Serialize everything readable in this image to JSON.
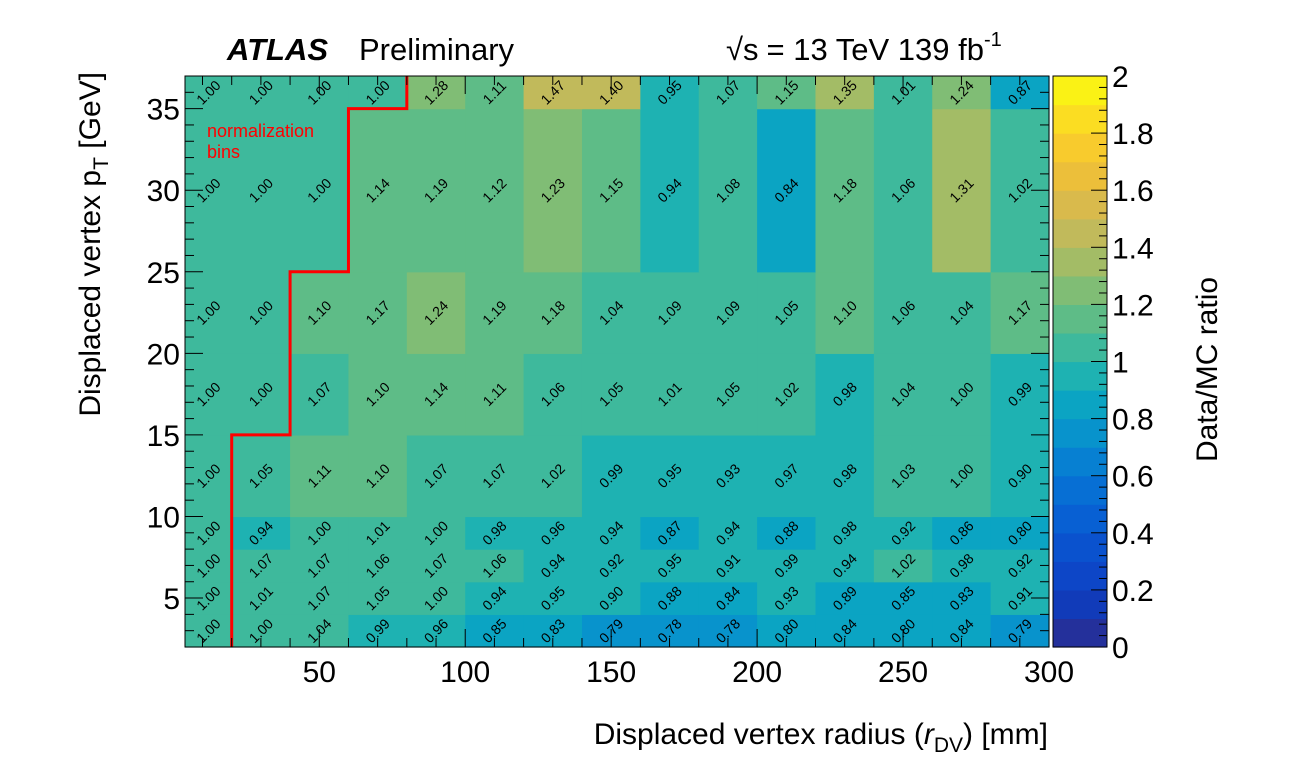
{
  "header": {
    "experiment": "ATLAS",
    "status": "Preliminary",
    "sqrt_symbol": "√s",
    "energy": "= 13 TeV 139 fb",
    "lumi_exp": "-1"
  },
  "annotation": {
    "line1": "normalization",
    "line2": "bins",
    "color": "#ff0000"
  },
  "chart_data": {
    "type": "heatmap",
    "x_edges": [
      4,
      20,
      40,
      60,
      80,
      100,
      120,
      140,
      160,
      180,
      200,
      220,
      240,
      260,
      280,
      300
    ],
    "y_edges": [
      2,
      4,
      6,
      8,
      10,
      15,
      20,
      25,
      35,
      37
    ],
    "values": [
      [
        1.0,
        1.0,
        1.04,
        0.99,
        0.96,
        0.85,
        0.83,
        0.79,
        0.78,
        0.78,
        0.8,
        0.84,
        0.8,
        0.84,
        0.79
      ],
      [
        1.0,
        1.01,
        1.07,
        1.05,
        1.0,
        0.94,
        0.95,
        0.9,
        0.88,
        0.84,
        0.93,
        0.89,
        0.85,
        0.83,
        0.91
      ],
      [
        1.0,
        1.07,
        1.07,
        1.06,
        1.07,
        1.06,
        0.94,
        0.92,
        0.95,
        0.91,
        0.99,
        0.94,
        1.02,
        0.98,
        0.92
      ],
      [
        1.0,
        0.94,
        1.0,
        1.01,
        1.0,
        0.98,
        0.96,
        0.94,
        0.87,
        0.94,
        0.88,
        0.98,
        0.92,
        0.86,
        0.8
      ],
      [
        1.0,
        1.05,
        1.11,
        1.1,
        1.07,
        1.07,
        1.02,
        0.99,
        0.95,
        0.93,
        0.97,
        0.98,
        1.03,
        1.0,
        0.9
      ],
      [
        1.0,
        1.0,
        1.07,
        1.1,
        1.14,
        1.11,
        1.06,
        1.05,
        1.01,
        1.05,
        1.02,
        0.98,
        1.04,
        1.0,
        0.99
      ],
      [
        1.0,
        1.0,
        1.1,
        1.17,
        1.24,
        1.19,
        1.18,
        1.04,
        1.09,
        1.09,
        1.05,
        1.1,
        1.06,
        1.04,
        1.17
      ],
      [
        1.0,
        1.0,
        1.0,
        1.14,
        1.19,
        1.12,
        1.23,
        1.15,
        0.94,
        1.08,
        0.84,
        1.18,
        1.06,
        1.31,
        1.02
      ],
      [
        1.0,
        1.0,
        1.0,
        1.0,
        1.28,
        1.11,
        1.47,
        1.4,
        0.95,
        1.07,
        1.15,
        1.35,
        1.01,
        1.24,
        0.87
      ]
    ],
    "xlim": [
      4,
      300
    ],
    "ylim": [
      2,
      37
    ],
    "x_ticks": [
      "50",
      "100",
      "150",
      "200",
      "250",
      "300"
    ],
    "y_ticks": [
      "5",
      "10",
      "15",
      "20",
      "25",
      "30",
      "35"
    ],
    "xlabel_main": "Displaced vertex radius (",
    "xlabel_r": "r",
    "xlabel_sub": "DV",
    "xlabel_end": ") [mm]",
    "ylabel_main": "Displaced vertex p",
    "ylabel_sub": "T",
    "ylabel_end": " [GeV]",
    "zlabel": "Data/MC ratio",
    "zlim": [
      0,
      2
    ],
    "z_ticks": [
      "0",
      "0.2",
      "0.4",
      "0.6",
      "0.8",
      "1",
      "1.2",
      "1.4",
      "1.6",
      "1.8",
      "2"
    ],
    "normalization_boundary": [
      [
        20,
        2
      ],
      [
        20,
        15
      ],
      [
        40,
        15
      ],
      [
        40,
        25
      ],
      [
        60,
        25
      ],
      [
        60,
        35
      ],
      [
        80,
        35
      ],
      [
        80,
        37
      ]
    ],
    "boundary_color": "#ff0000"
  }
}
